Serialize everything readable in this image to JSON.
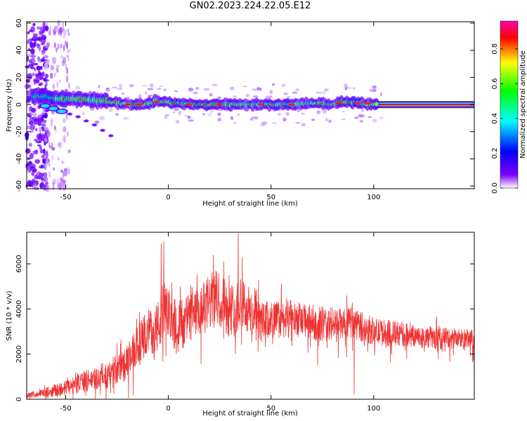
{
  "page": {
    "title": "GN02.2023.224.22.05.E12"
  },
  "chart_data": [
    {
      "type": "heatmap",
      "title": "GN02.2023.224.22.05.E12",
      "xlabel": "Height of straight line (km)",
      "ylabel": "Frequency (Hz)",
      "xlim": [
        -69,
        149
      ],
      "ylim": [
        -62,
        61
      ],
      "x_ticks": [
        -50,
        0,
        50,
        100
      ],
      "y_ticks": [
        -60,
        -40,
        -20,
        0,
        20,
        40,
        60
      ],
      "grid": false,
      "colorbar": {
        "label": "Normalized spectral amplitude",
        "range": [
          0.0,
          0.96
        ],
        "ticks": [
          0.0,
          0.2,
          0.4,
          0.6,
          0.8
        ],
        "colormap": [
          "#ffffff",
          "#7b00ff",
          "#0000ff",
          "#00ffff",
          "#00ff00",
          "#ffff00",
          "#ff0000",
          "#ff00aa"
        ]
      },
      "ridge": {
        "x": [
          -64,
          -60,
          -56,
          -52,
          -48,
          -44,
          -40,
          -36,
          -32,
          -28,
          -24,
          -20,
          -16,
          -12,
          -8,
          -6,
          -2,
          2,
          6,
          10,
          20,
          40,
          60,
          70,
          75,
          80,
          85,
          90,
          95,
          100,
          149
        ],
        "y": [
          6,
          6,
          5,
          4,
          4,
          4,
          4,
          3,
          3,
          2,
          1,
          0,
          0,
          0,
          1,
          3,
          2,
          1,
          1,
          0,
          0,
          0,
          0,
          1,
          1,
          0,
          2,
          2,
          1,
          0,
          0
        ]
      },
      "branch": {
        "x": [
          -60,
          -56,
          -52,
          -48,
          -44,
          -40,
          -36,
          -32,
          -28
        ],
        "y": [
          -1,
          -3,
          -5,
          -7,
          -9,
          -12,
          -15,
          -19,
          -23
        ]
      }
    },
    {
      "type": "line",
      "xlabel": "Height of straight line (km)",
      "ylabel": "SNR (10 * v/v)",
      "xlim": [
        -69,
        149
      ],
      "ylim": [
        0,
        7400
      ],
      "x_ticks": [
        -50,
        0,
        50,
        100
      ],
      "y_ticks": [
        0,
        2000,
        4000,
        6000
      ],
      "color": "#ee3333",
      "grid": false,
      "envelope": {
        "x": [
          -69,
          -60,
          -50,
          -40,
          -30,
          -20,
          -15,
          -10,
          -5,
          -2,
          0,
          5,
          10,
          15,
          20,
          25,
          30,
          33,
          35,
          40,
          45,
          50,
          60,
          70,
          80,
          85,
          90,
          95,
          100,
          110,
          120,
          130,
          140,
          149
        ],
        "mean": [
          150,
          300,
          500,
          800,
          1100,
          1600,
          2400,
          3000,
          3200,
          4000,
          3800,
          3400,
          3600,
          3800,
          4300,
          4500,
          3900,
          4000,
          4500,
          3800,
          3400,
          3500,
          3600,
          3400,
          3300,
          3300,
          3400,
          3200,
          3000,
          2900,
          2800,
          2700,
          2700,
          2600
        ],
        "amplitude": [
          100,
          200,
          350,
          500,
          600,
          800,
          900,
          1000,
          1200,
          1400,
          1100,
          1000,
          1100,
          1100,
          1300,
          1300,
          1200,
          1200,
          1300,
          1100,
          900,
          900,
          800,
          800,
          800,
          700,
          700,
          700,
          600,
          600,
          500,
          500,
          500,
          500
        ]
      },
      "peaks": [
        {
          "x": -3.5,
          "y": 6900
        },
        {
          "x": -2.2,
          "y": 7000
        },
        {
          "x": 22,
          "y": 6400
        },
        {
          "x": 27,
          "y": 6100
        },
        {
          "x": 34,
          "y": 7350
        },
        {
          "x": 36,
          "y": 6300
        },
        {
          "x": 90.5,
          "y": 200
        }
      ]
    }
  ]
}
